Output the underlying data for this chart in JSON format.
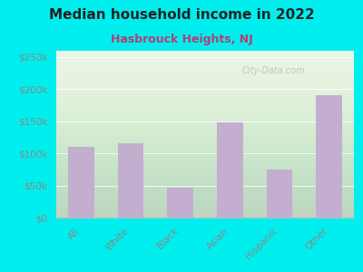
{
  "title": "Median household income in 2022",
  "subtitle": "Hasbrouck Heights, NJ",
  "categories": [
    "All",
    "White",
    "Black",
    "Asian",
    "Hispanic",
    "Other"
  ],
  "values": [
    110000,
    115000,
    47000,
    148000,
    75000,
    190000
  ],
  "bar_color": "#c4aed0",
  "title_fontsize": 11,
  "subtitle_fontsize": 9,
  "subtitle_color": "#b04070",
  "background_color": "#00eeee",
  "ylim": [
    0,
    260000
  ],
  "yticks": [
    0,
    50000,
    100000,
    150000,
    200000,
    250000
  ],
  "watermark": "City-Data.com",
  "tick_color": "#888888"
}
